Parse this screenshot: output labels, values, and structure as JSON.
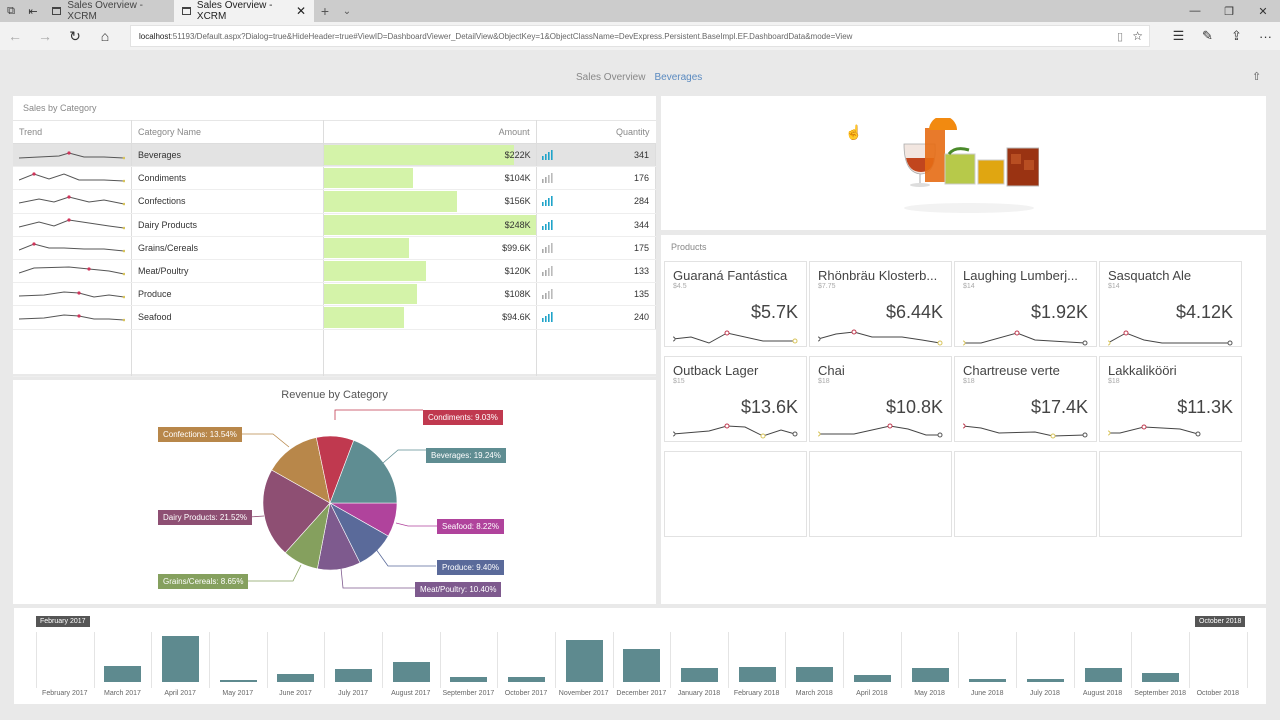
{
  "browser": {
    "tabs": [
      {
        "label": "Sales Overview - XCRM",
        "active": false
      },
      {
        "label": "Sales Overview - XCRM",
        "active": true
      }
    ],
    "url_host": "localhost",
    "url_rest": ":51193/Default.aspx?Dialog=true&HideHeader=true#ViewID=DashboardViewer_DetailView&ObjectKey=1&ObjectClassName=DevExpress.Persistent.BaseImpl.EF.DashboardData&mode=View"
  },
  "breadcrumb": {
    "root": "Sales Overview",
    "current": "Beverages"
  },
  "grid": {
    "title": "Sales by Category",
    "columns": [
      "Trend",
      "Category Name",
      "Amount",
      "Quantity"
    ],
    "rows": [
      {
        "name": "Beverages",
        "amount": "$222K",
        "qty": "341",
        "bar": 0.9,
        "hi": true
      },
      {
        "name": "Condiments",
        "amount": "$104K",
        "qty": "176",
        "bar": 0.42,
        "hi": false
      },
      {
        "name": "Confections",
        "amount": "$156K",
        "qty": "284",
        "bar": 0.63,
        "hi": true
      },
      {
        "name": "Dairy Products",
        "amount": "$248K",
        "qty": "344",
        "bar": 1.0,
        "hi": true
      },
      {
        "name": "Grains/Cereals",
        "amount": "$99.6K",
        "qty": "175",
        "bar": 0.4,
        "hi": false
      },
      {
        "name": "Meat/Poultry",
        "amount": "$120K",
        "qty": "133",
        "bar": 0.48,
        "hi": false
      },
      {
        "name": "Produce",
        "amount": "$108K",
        "qty": "135",
        "bar": 0.44,
        "hi": false
      },
      {
        "name": "Seafood",
        "amount": "$94.6K",
        "qty": "240",
        "bar": 0.38,
        "hi": true
      }
    ]
  },
  "pie": {
    "title": "Revenue by Category",
    "labels": {
      "condiments": "Condiments: 9.03%",
      "beverages": "Beverages: 19.24%",
      "seafood": "Seafood: 8.22%",
      "produce": "Produce: 9.40%",
      "meat": "Meat/Poultry: 10.40%",
      "grains": "Grains/Cereals: 8.65%",
      "dairy": "Dairy Products: 21.52%",
      "confections": "Confections: 13.54%"
    },
    "colors": {
      "condiments": "#c0394f",
      "beverages": "#5f8d92",
      "seafood": "#b0439c",
      "produce": "#5a6a9a",
      "meat": "#7e5a8e",
      "grains": "#85a05e",
      "dairy": "#8e4f73",
      "confections": "#b8874a"
    }
  },
  "products": {
    "title": "Products",
    "cards": [
      {
        "name": "Guaraná Fantástica",
        "price": "$4.5",
        "value": "$5.7K"
      },
      {
        "name": "Rhönbräu Klosterb...",
        "price": "$7.75",
        "value": "$6.44K"
      },
      {
        "name": "Laughing Lumberj...",
        "price": "$14",
        "value": "$1.92K"
      },
      {
        "name": "Sasquatch Ale",
        "price": "$14",
        "value": "$4.12K"
      },
      {
        "name": "Outback Lager",
        "price": "$15",
        "value": "$13.6K"
      },
      {
        "name": "Chai",
        "price": "$18",
        "value": "$10.8K"
      },
      {
        "name": "Chartreuse verte",
        "price": "$18",
        "value": "$17.4K"
      },
      {
        "name": "Lakkalikööri",
        "price": "$18",
        "value": "$11.3K"
      }
    ]
  },
  "range": {
    "start_flag": "February 2017",
    "end_flag": "October 2018",
    "months": [
      "February 2017",
      "March 2017",
      "April 2017",
      "May 2017",
      "June 2017",
      "July 2017",
      "August 2017",
      "September 2017",
      "October 2017",
      "November 2017",
      "December 2017",
      "January 2018",
      "February 2018",
      "March 2018",
      "April 2018",
      "May 2018",
      "June 2018",
      "July 2018",
      "August 2018",
      "September 2018",
      "October 2018"
    ]
  },
  "chart_data": [
    {
      "type": "pie",
      "title": "Revenue by Category",
      "categories": [
        "Beverages",
        "Seafood",
        "Produce",
        "Meat/Poultry",
        "Grains/Cereals",
        "Dairy Products",
        "Confections",
        "Condiments"
      ],
      "values": [
        19.24,
        8.22,
        9.4,
        10.4,
        8.65,
        21.52,
        13.54,
        9.03
      ]
    },
    {
      "type": "bar",
      "title": "",
      "categories": [
        "February 2017",
        "March 2017",
        "April 2017",
        "May 2017",
        "June 2017",
        "July 2017",
        "August 2017",
        "September 2017",
        "October 2017",
        "November 2017",
        "December 2017",
        "January 2018",
        "February 2018",
        "March 2018",
        "April 2018",
        "May 2018",
        "June 2018",
        "July 2018",
        "August 2018",
        "September 2018",
        "October 2018"
      ],
      "values": [
        0,
        16,
        46,
        2,
        8,
        13,
        20,
        5,
        5,
        42,
        33,
        14,
        15,
        15,
        7,
        14,
        3,
        3,
        14,
        9,
        0
      ]
    }
  ]
}
